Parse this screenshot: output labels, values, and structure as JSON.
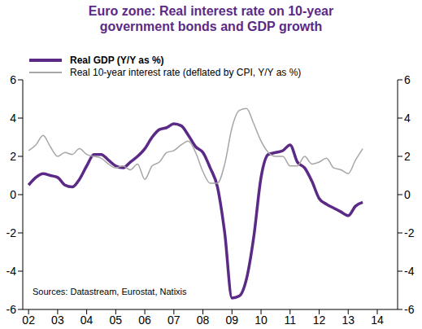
{
  "chart_data": {
    "type": "line",
    "title": "Euro zone: Real interest rate on 10-year government bonds and GDP growth",
    "annotations": [
      "Sources: Datastream, Eurostat, Natixis"
    ],
    "x": [
      2002.0,
      2002.25,
      2002.5,
      2002.75,
      2003.0,
      2003.25,
      2003.5,
      2003.75,
      2004.0,
      2004.25,
      2004.5,
      2004.75,
      2005.0,
      2005.25,
      2005.5,
      2005.75,
      2006.0,
      2006.25,
      2006.5,
      2006.75,
      2007.0,
      2007.25,
      2007.5,
      2007.75,
      2008.0,
      2008.25,
      2008.5,
      2008.75,
      2009.0,
      2009.25,
      2009.5,
      2009.75,
      2010.0,
      2010.25,
      2010.5,
      2010.75,
      2011.0,
      2011.25,
      2011.5,
      2011.75,
      2012.0,
      2012.25,
      2012.5,
      2012.75,
      2013.0,
      2013.25,
      2013.5
    ],
    "series": [
      {
        "name": "Real GDP (Y/Y as %)",
        "color": "#5b2a86",
        "values": [
          0.5,
          0.9,
          1.1,
          1.0,
          0.9,
          0.5,
          0.4,
          0.8,
          1.5,
          2.1,
          2.1,
          1.8,
          1.5,
          1.4,
          1.7,
          2.0,
          2.4,
          3.0,
          3.4,
          3.5,
          3.7,
          3.6,
          3.1,
          2.5,
          2.2,
          1.4,
          0.4,
          -2.0,
          -5.4,
          -5.3,
          -4.4,
          -2.2,
          0.9,
          2.1,
          2.2,
          2.3,
          2.6,
          1.7,
          1.4,
          0.7,
          -0.2,
          -0.5,
          -0.7,
          -0.9,
          -1.1,
          -0.6,
          -0.4
        ]
      },
      {
        "name": "Real 10-year interest rate (deflated by CPI, Y/Y as %)",
        "color": "#a6a6a6",
        "axis": "y2",
        "values": [
          2.3,
          2.6,
          3.1,
          2.5,
          2.0,
          2.2,
          2.1,
          2.4,
          2.1,
          2.0,
          1.9,
          1.6,
          1.4,
          1.5,
          1.3,
          1.6,
          0.8,
          1.5,
          1.7,
          2.2,
          2.3,
          2.6,
          2.8,
          2.2,
          1.2,
          0.6,
          0.6,
          1.6,
          3.5,
          4.4,
          4.5,
          3.7,
          2.8,
          2.2,
          2.0,
          2.0,
          1.5,
          1.5,
          2.0,
          1.6,
          1.7,
          1.9,
          1.4,
          1.3,
          1.1,
          1.8,
          2.4
        ]
      }
    ],
    "xlim": [
      2001.8,
      2014.7
    ],
    "xticks": [
      {
        "value": 2002,
        "label": "02"
      },
      {
        "value": 2003,
        "label": "03"
      },
      {
        "value": 2004,
        "label": "04"
      },
      {
        "value": 2005,
        "label": "05"
      },
      {
        "value": 2006,
        "label": "06"
      },
      {
        "value": 2007,
        "label": "07"
      },
      {
        "value": 2008,
        "label": "08"
      },
      {
        "value": 2009,
        "label": "09"
      },
      {
        "value": 2010,
        "label": "10"
      },
      {
        "value": 2011,
        "label": "11"
      },
      {
        "value": 2012,
        "label": "12"
      },
      {
        "value": 2013,
        "label": "13"
      },
      {
        "value": 2014,
        "label": "14"
      }
    ],
    "ylim": [
      -6,
      6
    ],
    "yticks": [
      -6,
      -4,
      -2,
      0,
      2,
      4,
      6
    ],
    "y2lim": [
      -6,
      6
    ],
    "y2ticks": [
      -6,
      -4,
      -2,
      0,
      2,
      4,
      6
    ],
    "grid": false,
    "legend": "upper left"
  }
}
